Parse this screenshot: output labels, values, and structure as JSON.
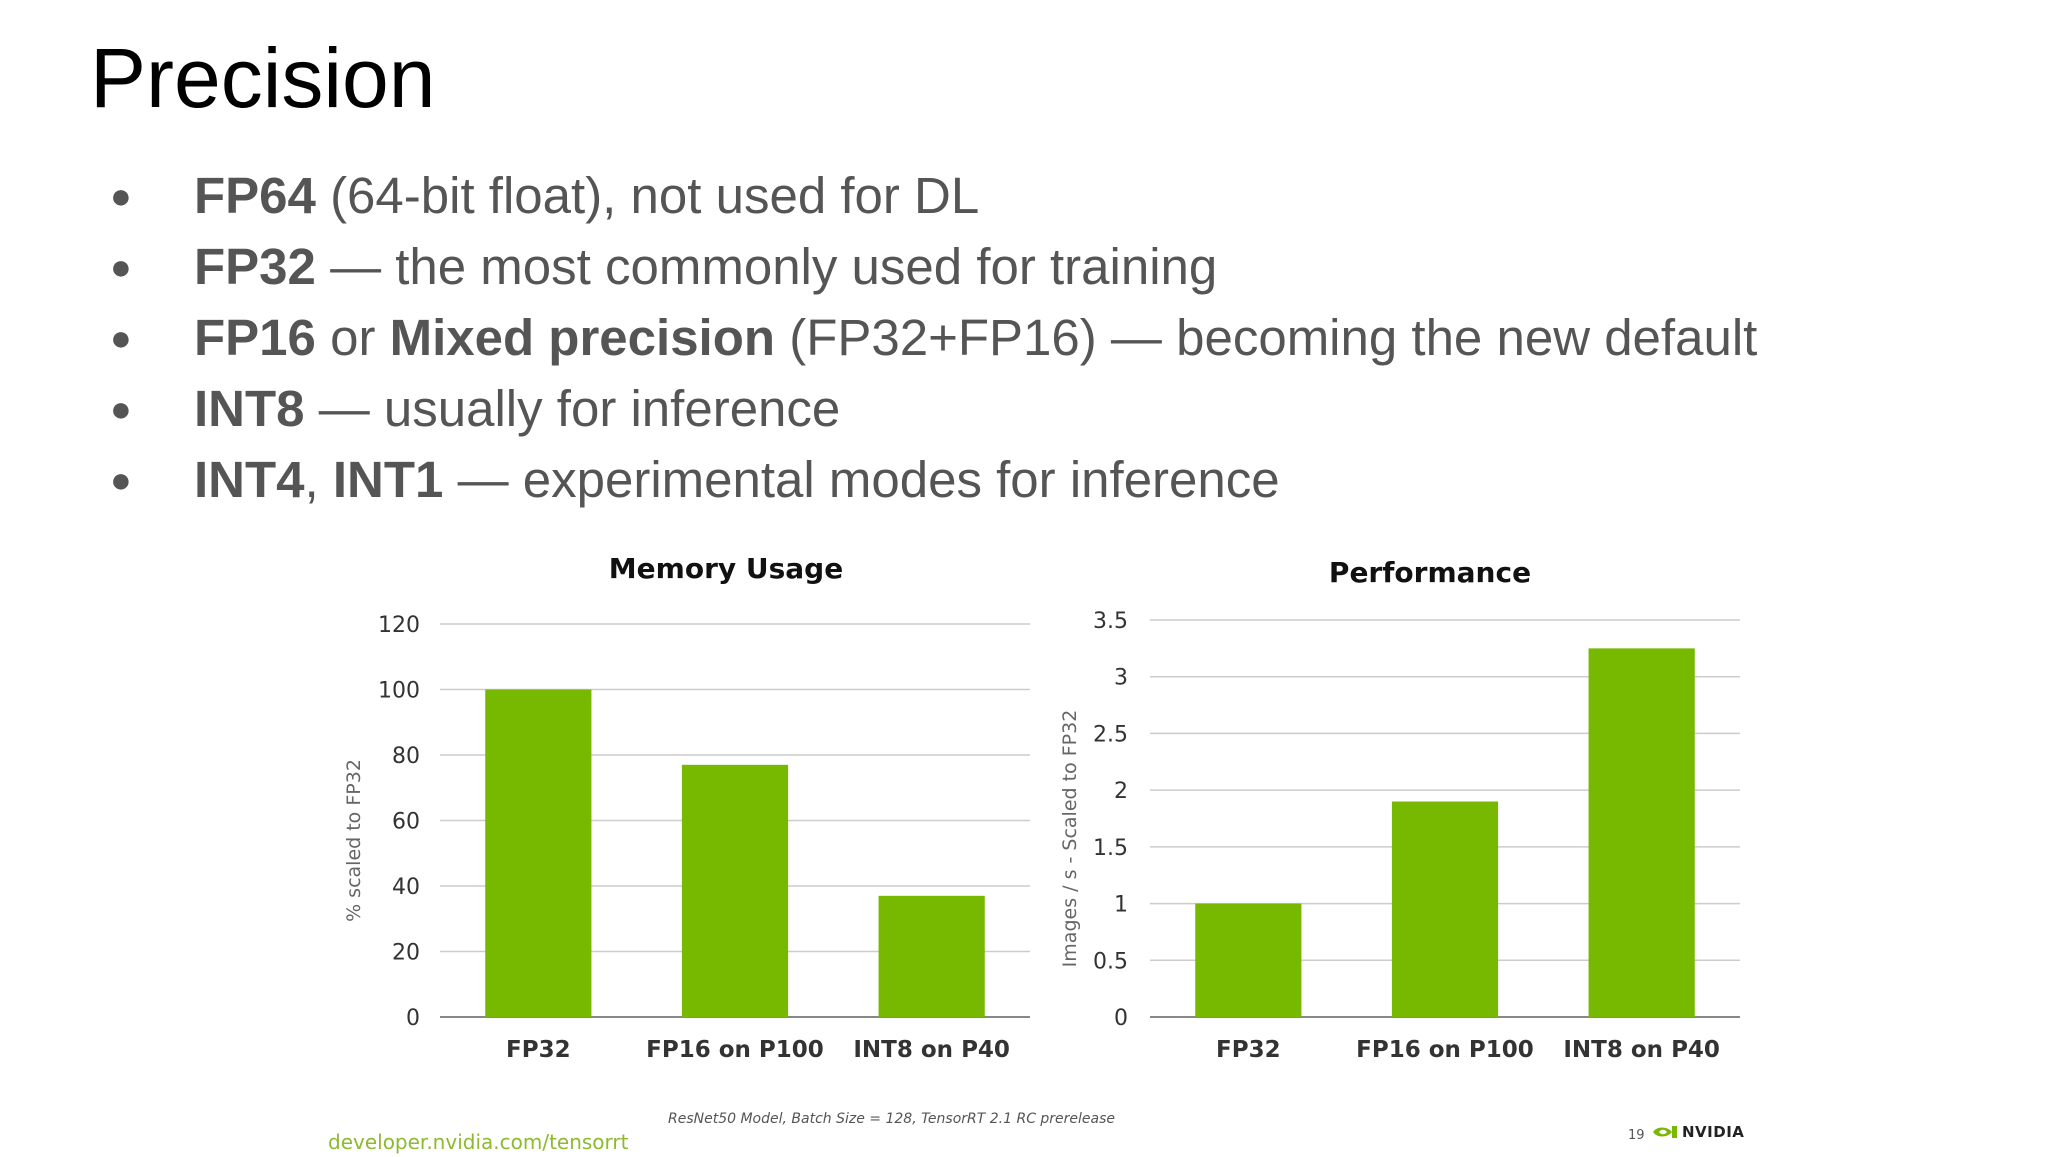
{
  "slide": {
    "title": "Precision",
    "bullets": [
      {
        "parts": [
          {
            "bold": true,
            "text": "FP64"
          },
          {
            "bold": false,
            "text": " (64-bit float), not used for DL"
          }
        ]
      },
      {
        "parts": [
          {
            "bold": true,
            "text": "FP32"
          },
          {
            "bold": false,
            "text": " — the most commonly used for training"
          }
        ]
      },
      {
        "parts": [
          {
            "bold": true,
            "text": "FP16"
          },
          {
            "bold": false,
            "text": " or "
          },
          {
            "bold": true,
            "text": "Mixed precision"
          },
          {
            "bold": false,
            "text": " (FP32+FP16) — becoming the new default"
          }
        ]
      },
      {
        "parts": [
          {
            "bold": true,
            "text": "INT8"
          },
          {
            "bold": false,
            "text": " — usually for inference"
          }
        ]
      },
      {
        "parts": [
          {
            "bold": true,
            "text": "INT4"
          },
          {
            "bold": false,
            "text": ", "
          },
          {
            "bold": true,
            "text": "INT1"
          },
          {
            "bold": false,
            "text": " — experimental modes for inference"
          }
        ]
      }
    ],
    "bullet_glyph": "●"
  },
  "chart_data": [
    {
      "type": "bar",
      "title": "Memory Usage",
      "ylabel": "% scaled to FP32",
      "xlabel": "",
      "categories": [
        "FP32",
        "FP16 on P100",
        "INT8 on P40"
      ],
      "values": [
        100,
        77,
        37
      ],
      "ylim": [
        0,
        120
      ],
      "yticks": [
        0,
        20,
        40,
        60,
        80,
        100,
        120
      ],
      "ytick_labels": [
        "0",
        "20",
        "40",
        "60",
        "80",
        "100",
        "120"
      ],
      "grid": true,
      "bar_color": "#76b900"
    },
    {
      "type": "bar",
      "title": "Performance",
      "ylabel": "Images / s  -  Scaled to FP32",
      "xlabel": "",
      "categories": [
        "FP32",
        "FP16 on P100",
        "INT8 on P40"
      ],
      "values": [
        1,
        1.9,
        3.25
      ],
      "ylim": [
        0,
        3.5
      ],
      "yticks": [
        0,
        0.5,
        1,
        1.5,
        2,
        2.5,
        3,
        3.5
      ],
      "ytick_labels": [
        "0",
        "0.5",
        "1",
        "1.5",
        "2",
        "2.5",
        "3",
        "3.5"
      ],
      "grid": true,
      "bar_color": "#76b900"
    }
  ],
  "footer": {
    "note": "ResNet50 Model, Batch Size = 128, TensorRT 2.1 RC prerelease",
    "link": "developer.nvidia.com/tensorrt",
    "page_number": "19",
    "logo_text": "NVIDIA",
    "logo_icon": "nvidia-eye-icon"
  }
}
